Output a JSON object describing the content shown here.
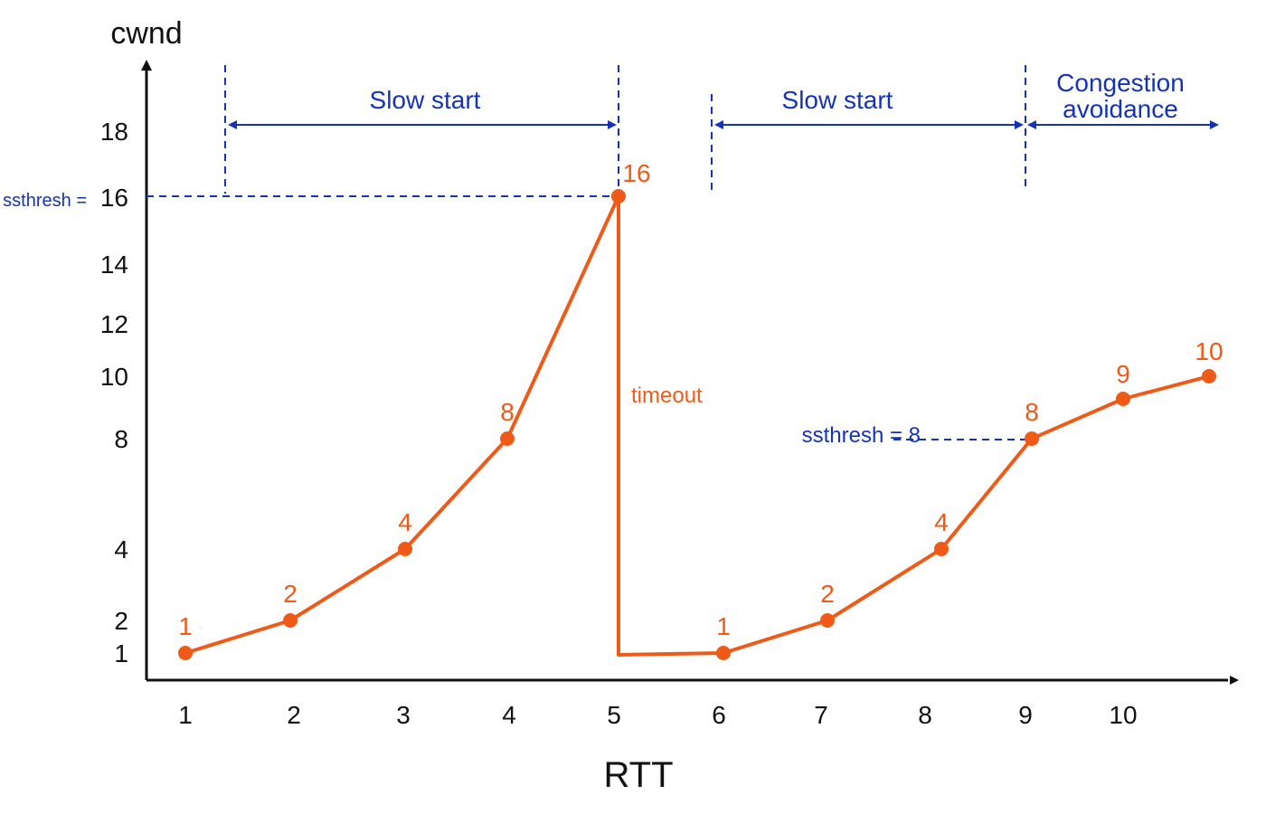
{
  "chart_data": {
    "type": "line",
    "xlabel": "RTT",
    "ylabel": "cwnd",
    "x_ticks": [
      1,
      2,
      3,
      4,
      5,
      6,
      7,
      8,
      9,
      10
    ],
    "y_ticks": [
      1,
      2,
      4,
      8,
      10,
      12,
      14,
      16,
      18
    ],
    "series": [
      {
        "points": [
          {
            "x": 1,
            "y": 1,
            "label": "1"
          },
          {
            "x": 2,
            "y": 2,
            "label": "2"
          },
          {
            "x": 3,
            "y": 4,
            "label": "4"
          },
          {
            "x": 4,
            "y": 8,
            "label": "8"
          },
          {
            "x": 5,
            "y": 16,
            "label": "16"
          },
          {
            "x": 6,
            "y": 1,
            "label": "1"
          },
          {
            "x": 7,
            "y": 2,
            "label": "2"
          },
          {
            "x": 8,
            "y": 4,
            "label": "4"
          },
          {
            "x": 9,
            "y": 8,
            "label": "8"
          },
          {
            "x": 10,
            "y": 9,
            "label": "9"
          },
          {
            "x": 11,
            "y": 10,
            "label": "10"
          }
        ],
        "color": "#f05a19"
      }
    ],
    "annotations": {
      "timeout": "timeout",
      "ssthresh_16": "ssthresh =",
      "ssthresh_16_value": "16",
      "ssthresh_8": "ssthresh = 8",
      "phases": [
        {
          "label": "Slow start"
        },
        {
          "label": "Slow start"
        },
        {
          "label_line1": "Congestion",
          "label_line2": "avoidance"
        }
      ]
    },
    "colors": {
      "axis": "#111111",
      "series": "#f05a19",
      "annotation": "#1633b6"
    }
  }
}
